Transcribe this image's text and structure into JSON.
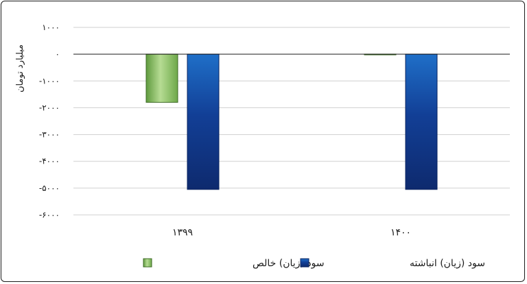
{
  "chart_data": {
    "type": "bar",
    "ylabel": "میلیارد تومان",
    "ylim": [
      -6000,
      1000
    ],
    "yticks": [
      1000,
      0,
      -1000,
      -2000,
      -3000,
      -4000,
      -5000,
      -6000
    ],
    "ytick_labels": [
      "۱۰۰۰",
      "۰",
      "-۱۰۰۰",
      "-۲۰۰۰",
      "-۳۰۰۰",
      "-۴۰۰۰",
      "-۵۰۰۰",
      "-۶۰۰۰"
    ],
    "categories": [
      "۱۳۹۹",
      "۱۴۰۰"
    ],
    "grid": true,
    "legend_position": "bottom",
    "series": [
      {
        "name": "سود (زیان) خالص",
        "values": [
          -1800,
          0
        ],
        "color": "#7fbf5a"
      },
      {
        "name": "سود (زیان) انباشته",
        "values": [
          -5050,
          -5050
        ],
        "color": "#1f4ea6"
      }
    ]
  }
}
